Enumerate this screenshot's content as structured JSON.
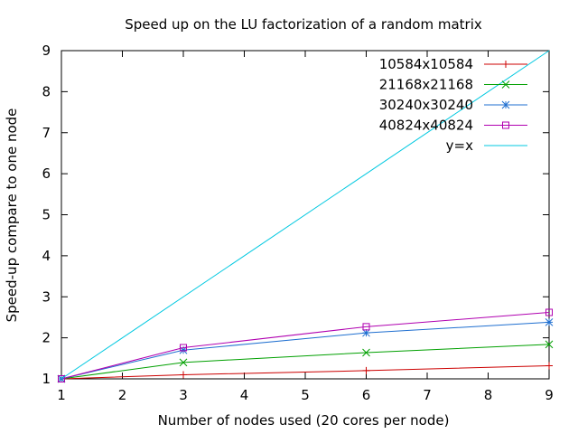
{
  "chart_data": {
    "type": "line",
    "title": "Speed up on the LU factorization of a random matrix",
    "xlabel": "Number of nodes used (20 cores per node)",
    "ylabel": "Speed-up compare to one node",
    "xlim": [
      1,
      9
    ],
    "ylim": [
      1,
      9
    ],
    "xticks": [
      1,
      2,
      3,
      4,
      5,
      6,
      7,
      8,
      9
    ],
    "yticks": [
      1,
      2,
      3,
      4,
      5,
      6,
      7,
      8,
      9
    ],
    "grid": false,
    "legend_position": "top-right",
    "series": [
      {
        "name": "10584x10584",
        "color": "#cc0000",
        "marker": "plus",
        "x": [
          1,
          3,
          6,
          9
        ],
        "y": [
          1.0,
          1.1,
          1.2,
          1.32
        ]
      },
      {
        "name": "21168x21168",
        "color": "#00a000",
        "marker": "cross",
        "x": [
          1,
          3,
          6,
          9
        ],
        "y": [
          1.0,
          1.4,
          1.64,
          1.84
        ]
      },
      {
        "name": "30240x30240",
        "color": "#1f6fd0",
        "marker": "star",
        "x": [
          1,
          3,
          6,
          9
        ],
        "y": [
          1.0,
          1.7,
          2.12,
          2.38
        ]
      },
      {
        "name": "40824x40824",
        "color": "#b000b0",
        "marker": "square",
        "x": [
          1,
          3,
          6,
          9
        ],
        "y": [
          1.0,
          1.76,
          2.27,
          2.62
        ]
      },
      {
        "name": "y=x",
        "color": "#00c8e0",
        "marker": "none",
        "x": [
          1,
          9
        ],
        "y": [
          1,
          9
        ]
      }
    ]
  }
}
